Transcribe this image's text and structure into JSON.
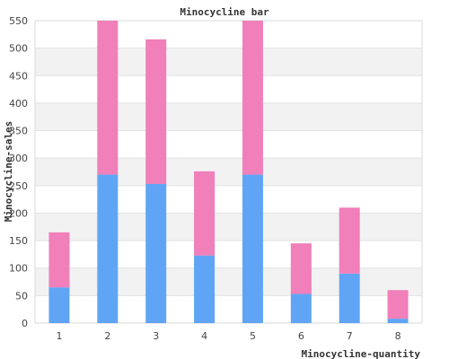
{
  "chart_data": {
    "type": "bar",
    "stacked": true,
    "title": "Minocycline bar",
    "xlabel": "Minocycline-quantity",
    "ylabel": "Minocycline-sales",
    "categories": [
      "1",
      "2",
      "3",
      "4",
      "5",
      "6",
      "7",
      "8"
    ],
    "series": [
      {
        "color": "#60a5f5",
        "values": [
          65,
          270,
          253,
          123,
          270,
          53,
          90,
          8
        ]
      },
      {
        "color": "#f07fba",
        "values": [
          100,
          280,
          263,
          153,
          280,
          92,
          120,
          52
        ]
      }
    ],
    "ylim": [
      0,
      550
    ],
    "yticks": [
      0,
      50,
      100,
      150,
      200,
      250,
      300,
      350,
      400,
      450,
      500,
      550
    ],
    "grid": true,
    "band_colors": [
      "#ffffff",
      "#f2f2f2"
    ]
  }
}
